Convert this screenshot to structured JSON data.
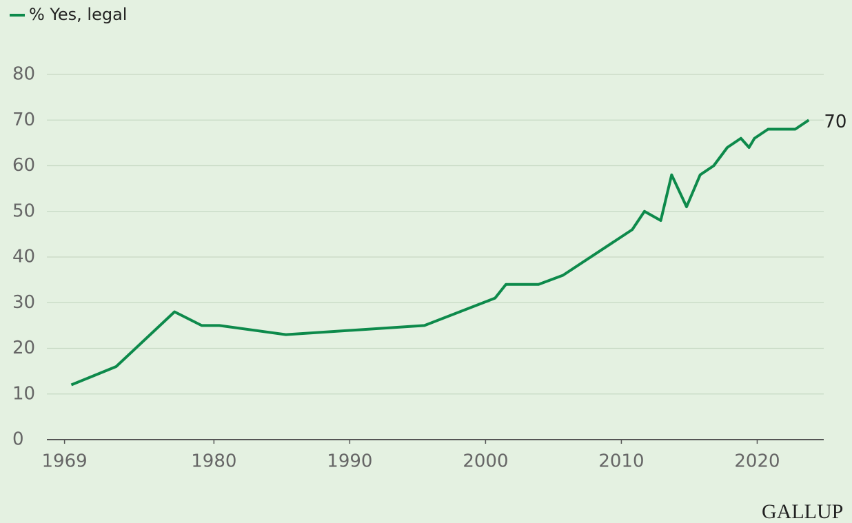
{
  "chart_data": {
    "type": "line",
    "legend": "top-left",
    "brand": "GALLUP",
    "x": [
      1969.5,
      1972.8,
      1977.1,
      1979.1,
      1980.4,
      1985.3,
      1995.5,
      2000.7,
      2001.5,
      2003.9,
      2005.7,
      2010.8,
      2011.7,
      2012.9,
      2013.7,
      2014.8,
      2015.8,
      2016.8,
      2017.8,
      2018.8,
      2019.4,
      2019.8,
      2020.8,
      2022.8,
      2023.8
    ],
    "series": [
      {
        "name": "% Yes, legal",
        "color": "#0d8a4b",
        "values": [
          12,
          16,
          28,
          25,
          25,
          23,
          25,
          31,
          34,
          34,
          36,
          46,
          50,
          48,
          58,
          51,
          58,
          60,
          64,
          66,
          64,
          66,
          68,
          68,
          70
        ]
      }
    ],
    "end_label": true,
    "xlim": [
      1967.7,
      2024.9
    ],
    "xticks": [
      1969,
      1980,
      1990,
      2000,
      2010,
      2020
    ],
    "ylim": [
      0,
      80
    ],
    "yticks": [
      0,
      10,
      20,
      30,
      40,
      50,
      60,
      70,
      80
    ],
    "grid": true
  }
}
